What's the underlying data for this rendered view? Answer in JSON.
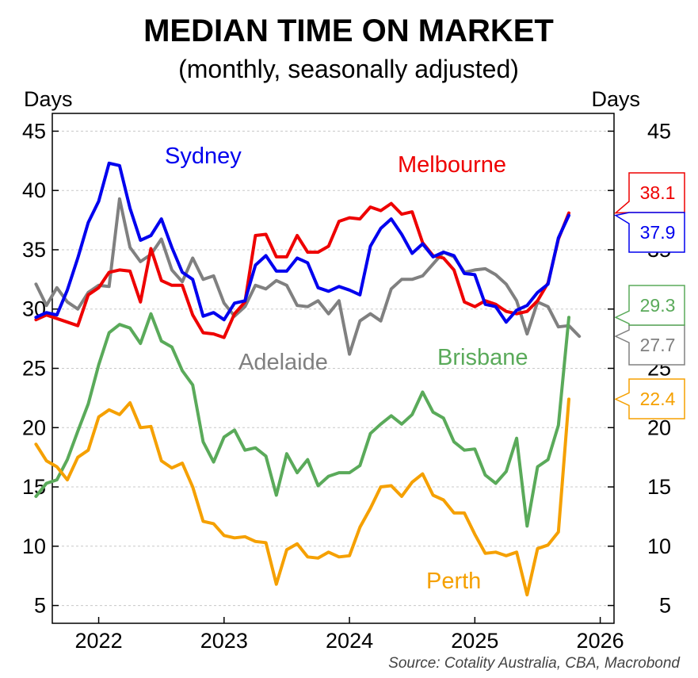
{
  "chart_data": {
    "type": "line",
    "title": "MEDIAN TIME ON MARKET",
    "subtitle": "(monthly, seasonally adjusted)",
    "ylabel_left": "Days",
    "ylabel_right": "Days",
    "source": "Source: Cotality Australia, CBA, Macrobond",
    "ylim": [
      3.5,
      46.5
    ],
    "xlim": [
      2021.63,
      2026.11
    ],
    "yticks": [
      5,
      10,
      15,
      20,
      25,
      30,
      35,
      40,
      45
    ],
    "xticks": [
      2022,
      2023,
      2024,
      2025,
      2026
    ],
    "xtick_labels": [
      "2022",
      "2023",
      "2024",
      "2025",
      "2026"
    ],
    "grid": true,
    "x_start": "2021-07",
    "x_step": "month",
    "series": [
      {
        "name": "Adelaide",
        "color": "#808080",
        "last_value": "27.7",
        "values": [
          32.1,
          30.3,
          31.8,
          30.6,
          30.0,
          31.4,
          32.0,
          31.9,
          39.3,
          35.2,
          34.0,
          34.6,
          35.9,
          33.3,
          32.3,
          34.3,
          32.5,
          32.8,
          30.5,
          29.4,
          30.2,
          32.0,
          31.7,
          32.4,
          32.0,
          30.3,
          30.2,
          30.7,
          29.6,
          30.7,
          26.2,
          29.0,
          29.6,
          29.0,
          31.7,
          32.5,
          32.5,
          32.8,
          33.8,
          34.8,
          34.4,
          33.1,
          33.3,
          33.4,
          32.9,
          32.1,
          30.7,
          27.9,
          30.6,
          30.2,
          28.5,
          28.6,
          27.7
        ]
      },
      {
        "name": "Brisbane",
        "color": "#5aaa5a",
        "last_value": "29.3",
        "values": [
          14.2,
          15.3,
          15.6,
          17.3,
          19.7,
          22.0,
          25.3,
          28.0,
          28.7,
          28.4,
          27.1,
          29.6,
          27.3,
          26.8,
          24.8,
          23.6,
          18.8,
          17.1,
          19.2,
          19.8,
          18.1,
          18.3,
          17.6,
          14.3,
          17.8,
          16.2,
          17.3,
          15.1,
          15.9,
          16.2,
          16.2,
          16.8,
          19.5,
          20.3,
          21.0,
          20.3,
          21.1,
          23.0,
          21.3,
          20.8,
          18.8,
          18.1,
          18.2,
          16.0,
          15.3,
          16.3,
          19.1,
          11.7,
          16.7,
          17.3,
          20.2,
          29.3
        ]
      },
      {
        "name": "Melbourne",
        "color": "#ee0000",
        "last_value": "38.1",
        "values": [
          29.1,
          29.5,
          29.2,
          28.9,
          28.6,
          31.2,
          31.8,
          33.1,
          33.3,
          33.2,
          30.6,
          35.1,
          32.4,
          32.0,
          32.0,
          29.5,
          28.0,
          27.9,
          27.6,
          29.6,
          30.6,
          36.2,
          36.3,
          34.4,
          34.4,
          36.2,
          34.8,
          34.8,
          35.3,
          37.4,
          37.7,
          37.6,
          38.6,
          38.3,
          38.9,
          38.0,
          38.2,
          35.6,
          34.5,
          34.3,
          33.3,
          30.6,
          30.2,
          30.7,
          30.4,
          29.8,
          29.6,
          29.8,
          30.7,
          32.2,
          35.9,
          38.1
        ]
      },
      {
        "name": "Perth",
        "color": "#f5a000",
        "last_value": "22.4",
        "values": [
          18.6,
          17.2,
          16.7,
          15.6,
          17.5,
          18.1,
          20.9,
          21.5,
          21.1,
          22.1,
          20.0,
          20.1,
          17.2,
          16.6,
          17.0,
          15.0,
          12.1,
          11.9,
          10.9,
          10.7,
          10.8,
          10.4,
          10.3,
          6.8,
          9.7,
          10.2,
          9.1,
          9.0,
          9.5,
          9.1,
          9.2,
          11.6,
          13.2,
          15.0,
          15.1,
          14.2,
          15.4,
          16.1,
          14.3,
          13.9,
          12.8,
          12.8,
          11.0,
          9.4,
          9.5,
          9.2,
          9.5,
          5.9,
          9.8,
          10.1,
          11.2,
          22.4
        ]
      },
      {
        "name": "Sydney",
        "color": "#0000ee",
        "last_value": "37.9",
        "values": [
          29.3,
          29.7,
          29.5,
          31.6,
          34.3,
          37.3,
          39.1,
          42.3,
          42.1,
          38.5,
          35.8,
          36.2,
          37.6,
          35.2,
          33.1,
          32.5,
          29.4,
          29.7,
          29.1,
          30.5,
          30.7,
          33.7,
          34.5,
          33.2,
          33.2,
          34.3,
          33.9,
          31.8,
          31.5,
          31.9,
          31.6,
          31.2,
          35.3,
          36.8,
          37.6,
          36.3,
          34.7,
          35.5,
          34.4,
          34.8,
          34.5,
          33.0,
          32.9,
          30.4,
          30.2,
          28.9,
          29.9,
          30.3,
          31.4,
          32.1,
          36.0,
          37.9
        ]
      }
    ]
  }
}
